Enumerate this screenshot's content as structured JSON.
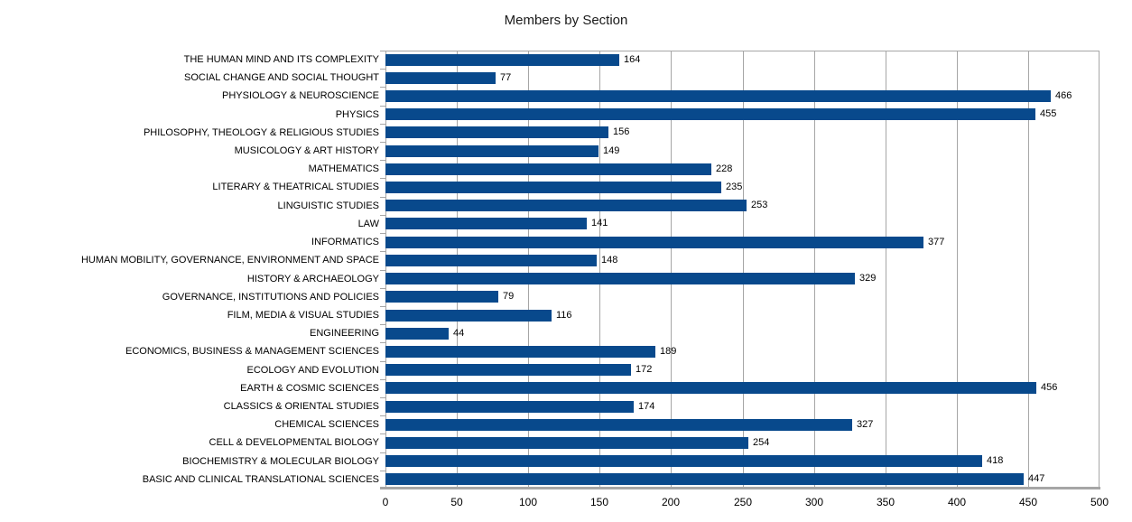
{
  "chart_data": {
    "type": "bar",
    "orientation": "horizontal",
    "title": "Members by Section",
    "categories": [
      "THE HUMAN MIND AND ITS COMPLEXITY",
      "SOCIAL CHANGE AND SOCIAL THOUGHT",
      "PHYSIOLOGY & NEUROSCIENCE",
      "PHYSICS",
      "PHILOSOPHY, THEOLOGY & RELIGIOUS STUDIES",
      "MUSICOLOGY & ART HISTORY",
      "MATHEMATICS",
      "LITERARY & THEATRICAL STUDIES",
      "LINGUISTIC STUDIES",
      "LAW",
      "INFORMATICS",
      "HUMAN MOBILITY, GOVERNANCE, ENVIRONMENT AND SPACE",
      "HISTORY & ARCHAEOLOGY",
      "GOVERNANCE, INSTITUTIONS AND POLICIES",
      "FILM, MEDIA & VISUAL STUDIES",
      "ENGINEERING",
      "ECONOMICS, BUSINESS & MANAGEMENT SCIENCES",
      "ECOLOGY AND EVOLUTION",
      "EARTH & COSMIC SCIENCES",
      "CLASSICS & ORIENTAL STUDIES",
      "CHEMICAL SCIENCES",
      "CELL & DEVELOPMENTAL BIOLOGY",
      "BIOCHEMISTRY & MOLECULAR BIOLOGY",
      "BASIC AND CLINICAL TRANSLATIONAL SCIENCES"
    ],
    "values": [
      164,
      77,
      466,
      455,
      156,
      149,
      228,
      235,
      253,
      141,
      377,
      148,
      329,
      79,
      116,
      44,
      189,
      172,
      456,
      174,
      327,
      254,
      418,
      447
    ],
    "xlabel": "",
    "ylabel": "",
    "xlim": [
      0,
      500
    ],
    "x_ticks": [
      0,
      50,
      100,
      150,
      200,
      250,
      300,
      350,
      400,
      450,
      500
    ],
    "grid": "vertical",
    "legend": "none",
    "data_labels": "outside-end",
    "bar_color": "#08498c",
    "grid_color": "#a6a6a6",
    "axis_line_color": "#a6a6a6",
    "text_color": "#000000"
  }
}
